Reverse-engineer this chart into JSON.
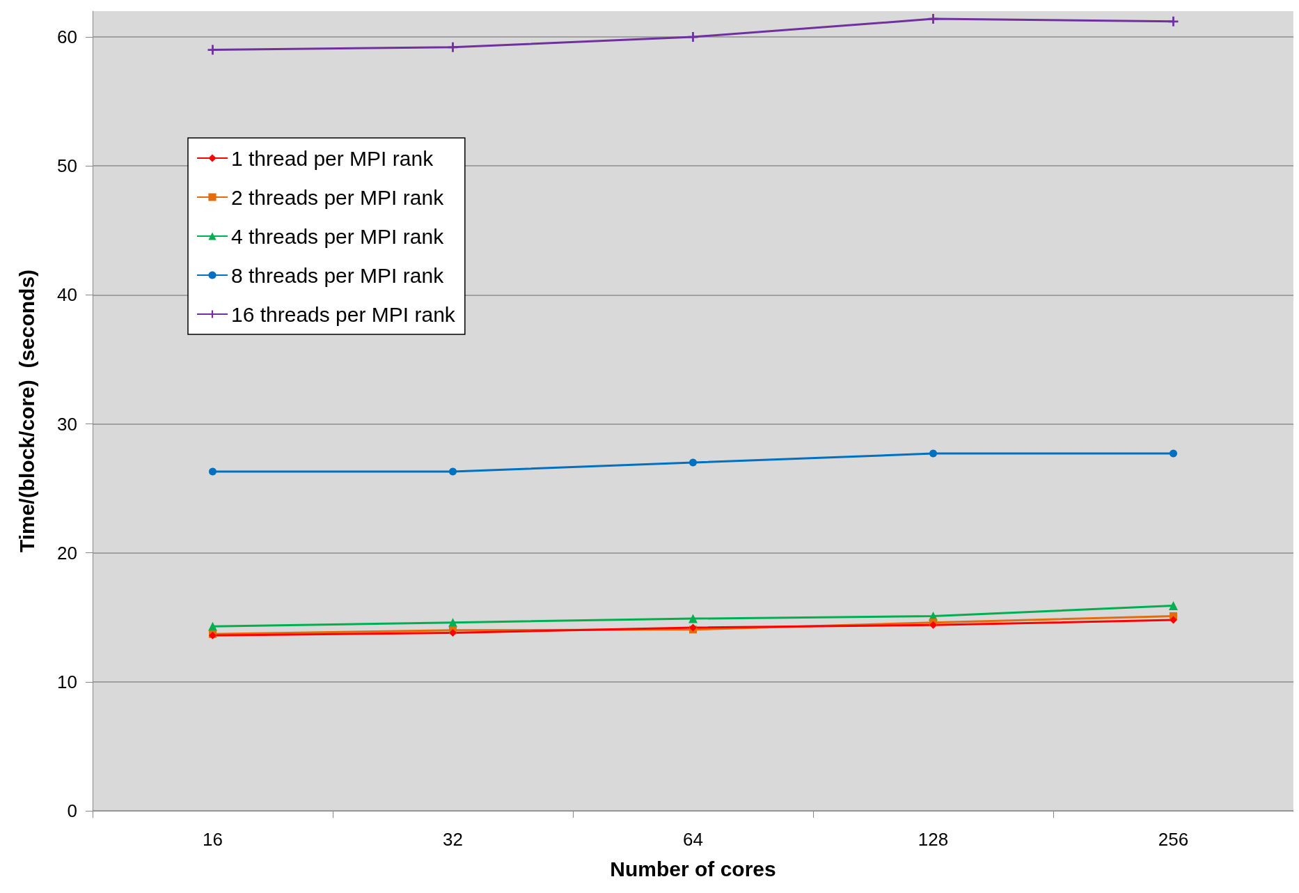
{
  "chart_data": {
    "type": "line",
    "xlabel": "Number of cores",
    "ylabel": "Time/(block/core)  (seconds)",
    "categories": [
      "16",
      "32",
      "64",
      "128",
      "256"
    ],
    "ylim": [
      0,
      62
    ],
    "yticks": [
      0,
      10,
      20,
      30,
      40,
      50,
      60
    ],
    "grid": "y",
    "legend": "top left",
    "series": [
      {
        "name": "1 thread per MPI rank",
        "color": "#ff0000",
        "marker": "diamond",
        "values": [
          13.6,
          13.8,
          14.2,
          14.4,
          14.8
        ]
      },
      {
        "name": "2 threads per MPI rank",
        "color": "#e46c0a",
        "marker": "square",
        "values": [
          13.7,
          14.0,
          14.05,
          14.6,
          15.1
        ]
      },
      {
        "name": "4 threads per MPI rank",
        "color": "#00b050",
        "marker": "triangle",
        "values": [
          14.3,
          14.6,
          14.9,
          15.1,
          15.9
        ]
      },
      {
        "name": "8 threads per MPI rank",
        "color": "#0070c0",
        "marker": "circle",
        "values": [
          26.3,
          26.3,
          27.0,
          27.7,
          27.7
        ]
      },
      {
        "name": "16 threads per MPI rank",
        "color": "#7030a0",
        "marker": "cross",
        "values": [
          59.0,
          59.2,
          60.0,
          61.4,
          61.2
        ]
      }
    ]
  }
}
